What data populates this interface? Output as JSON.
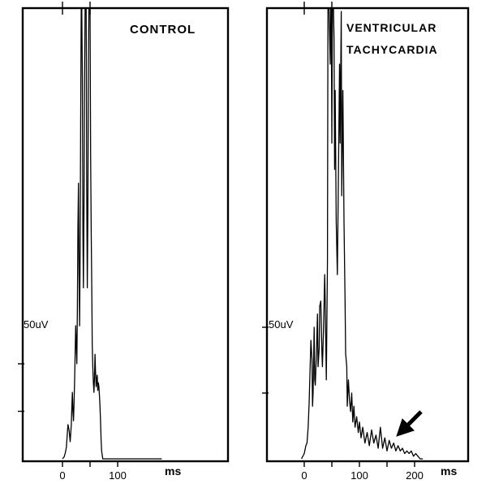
{
  "chart_data": [
    {
      "type": "line",
      "title": "CONTROL",
      "xlabel": "ms",
      "ylabel": "",
      "y_marker_label": "50uV",
      "x_ticks": [
        0,
        50,
        100
      ],
      "x_tick_labels": [
        "0",
        "100"
      ],
      "x_tick_label_values": [
        0,
        100
      ],
      "top_markers": [
        0,
        50
      ],
      "xlim": [
        -70,
        295
      ],
      "ylim": [
        0,
        320
      ],
      "y_marker_value": 50,
      "y_lower_tick": 25,
      "series": [
        {
          "x": [
            0,
            3,
            5,
            7,
            9,
            10,
            12,
            14,
            16,
            17,
            18,
            19,
            20,
            21,
            22,
            23,
            24,
            25,
            26,
            27,
            28,
            29,
            30,
            31,
            32,
            33,
            34,
            35,
            36,
            37,
            38,
            39,
            40,
            41,
            42,
            43,
            44,
            45,
            46,
            47,
            48,
            49,
            50,
            51,
            52,
            53,
            54,
            55,
            56,
            57,
            58,
            59,
            60,
            61,
            62,
            63,
            64,
            65,
            66,
            67,
            68,
            69,
            70,
            71,
            72,
            73,
            75,
            78,
            82,
            90,
            100,
            110,
            120,
            130,
            140,
            150,
            160,
            170,
            180
          ],
          "y": [
            0,
            1,
            3,
            6,
            14,
            18,
            15,
            9,
            18,
            28,
            35,
            25,
            20,
            30,
            42,
            55,
            70,
            60,
            50,
            80,
            120,
            145,
            100,
            70,
            110,
            175,
            260,
            320,
            200,
            120,
            90,
            130,
            200,
            285,
            320,
            250,
            140,
            90,
            130,
            210,
            300,
            320,
            240,
            160,
            120,
            95,
            60,
            48,
            40,
            35,
            42,
            55,
            45,
            38,
            42,
            44,
            36,
            40,
            38,
            33,
            28,
            20,
            10,
            4,
            2,
            0,
            0,
            0,
            0,
            0,
            0,
            0,
            0,
            0,
            0,
            0,
            0,
            0,
            0
          ]
        }
      ]
    },
    {
      "type": "line",
      "title": "VENTRICULAR TACHYCARDIA",
      "title_lines": [
        "VENTRICULAR",
        "TACHYCARDIA"
      ],
      "xlabel": "ms",
      "ylabel": "",
      "y_marker_label": "50uV",
      "x_ticks": [
        0,
        50,
        100,
        150,
        200
      ],
      "x_tick_labels": [
        "0",
        "100",
        "200"
      ],
      "x_tick_label_values": [
        0,
        100,
        200
      ],
      "top_markers": [
        0,
        50
      ],
      "xlim": [
        -70,
        290
      ],
      "ylim": [
        0,
        320
      ],
      "y_marker_value": 50,
      "y_lower_tick": 25,
      "annotation": "arrow pointing to low-amplitude late potentials",
      "series": [
        {
          "x": [
            -5,
            0,
            3,
            5,
            7,
            9,
            10,
            12,
            14,
            15,
            16,
            18,
            19,
            20,
            22,
            24,
            25,
            27,
            28,
            30,
            32,
            33,
            35,
            37,
            38,
            39,
            40,
            42,
            43,
            44,
            45,
            47,
            48,
            49,
            50,
            51,
            52,
            53,
            54,
            55,
            56,
            58,
            60,
            62,
            64,
            65,
            67,
            68,
            70,
            72,
            74,
            75,
            77,
            78,
            80,
            82,
            84,
            86,
            88,
            90,
            92,
            95,
            98,
            100,
            103,
            106,
            110,
            114,
            118,
            122,
            126,
            130,
            134,
            138,
            142,
            146,
            150,
            154,
            158,
            162,
            166,
            170,
            174,
            178,
            182,
            186,
            190,
            194,
            198,
            202,
            206,
            210,
            215
          ],
          "y": [
            0,
            2,
            5,
            6,
            12,
            22,
            30,
            45,
            38,
            20,
            25,
            50,
            30,
            28,
            40,
            55,
            35,
            42,
            58,
            60,
            40,
            35,
            50,
            70,
            60,
            45,
            30,
            75,
            250,
            320,
            230,
            150,
            180,
            240,
            120,
            200,
            320,
            270,
            160,
            110,
            140,
            90,
            70,
            110,
            150,
            120,
            170,
            100,
            140,
            90,
            60,
            40,
            35,
            20,
            30,
            22,
            18,
            25,
            14,
            20,
            12,
            16,
            10,
            14,
            8,
            12,
            6,
            10,
            5,
            11,
            6,
            9,
            4,
            12,
            4,
            8,
            3,
            7,
            4,
            6,
            3,
            5,
            3,
            4,
            2,
            3,
            2,
            3,
            1,
            2,
            1,
            0,
            0
          ]
        }
      ]
    }
  ]
}
